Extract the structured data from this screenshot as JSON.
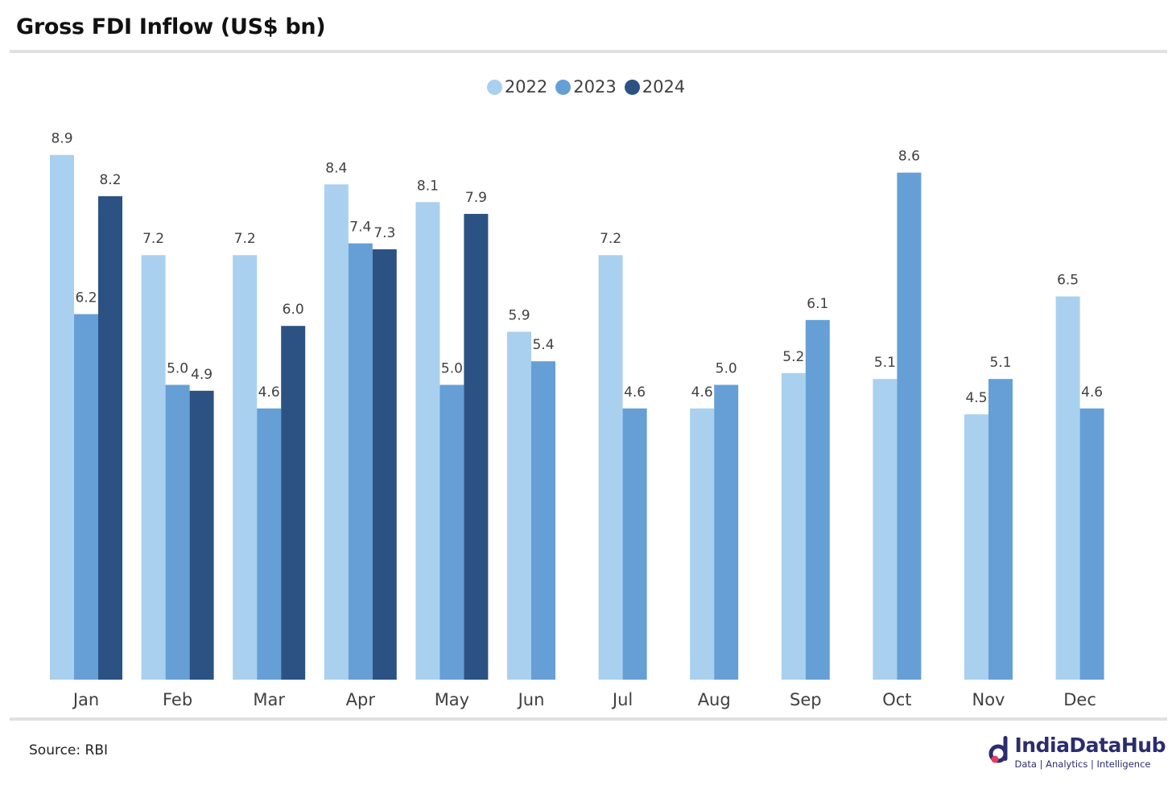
{
  "page": {
    "title": "Gross FDI Inflow (US$ bn)",
    "source": "Source: RBI",
    "brand_name": "IndiaDataHub",
    "brand_tagline": "Data | Analytics | Intelligence"
  },
  "chart_data": {
    "type": "bar",
    "title": "Gross FDI Inflow (US$ bn)",
    "xlabel": "",
    "ylabel": "",
    "ylim": [
      0,
      9.5
    ],
    "grid": false,
    "legend_position": "top-center",
    "categories": [
      "Jan",
      "Feb",
      "Mar",
      "Apr",
      "May",
      "Jun",
      "Jul",
      "Aug",
      "Sep",
      "Oct",
      "Nov",
      "Dec"
    ],
    "series": [
      {
        "name": "2022",
        "color": "#a9d0ef",
        "values": [
          8.9,
          7.2,
          7.2,
          8.4,
          8.1,
          5.9,
          7.2,
          4.6,
          5.2,
          5.1,
          4.5,
          6.5
        ]
      },
      {
        "name": "2023",
        "color": "#659fd6",
        "values": [
          6.2,
          5.0,
          4.6,
          7.4,
          5.0,
          5.4,
          4.6,
          5.0,
          6.1,
          8.6,
          5.1,
          4.6
        ]
      },
      {
        "name": "2024",
        "color": "#2c5283",
        "values": [
          8.2,
          4.9,
          6.0,
          7.3,
          7.9,
          null,
          null,
          null,
          null,
          null,
          null,
          null
        ]
      }
    ]
  }
}
